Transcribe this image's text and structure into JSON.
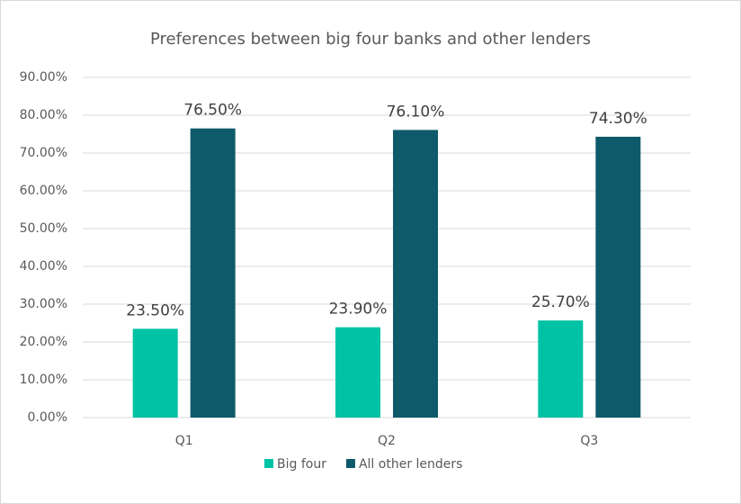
{
  "chart_data": {
    "type": "bar",
    "title": "Preferences between big four banks and other lenders",
    "categories": [
      "Q1",
      "Q2",
      "Q3"
    ],
    "series": [
      {
        "name": "Big four",
        "color": "#00c2a5",
        "values": [
          23.5,
          23.9,
          25.7
        ],
        "value_labels": [
          "23.50%",
          "23.90%",
          "25.70%"
        ]
      },
      {
        "name": "All other lenders",
        "color": "#0e5a6b",
        "values": [
          76.5,
          76.1,
          74.3
        ],
        "value_labels": [
          "76.50%",
          "76.10%",
          "74.30%"
        ]
      }
    ],
    "ylim": [
      0,
      90
    ],
    "yticks": [
      {
        "value": 0,
        "label": "0.00%"
      },
      {
        "value": 10,
        "label": "10.00%"
      },
      {
        "value": 20,
        "label": "20.00%"
      },
      {
        "value": 30,
        "label": "30.00%"
      },
      {
        "value": 40,
        "label": "40.00%"
      },
      {
        "value": 50,
        "label": "50.00%"
      },
      {
        "value": 60,
        "label": "60.00%"
      },
      {
        "value": 70,
        "label": "70.00%"
      },
      {
        "value": 80,
        "label": "80.00%"
      },
      {
        "value": 90,
        "label": "90.00%"
      }
    ],
    "grid": true,
    "legend": "bottom"
  }
}
